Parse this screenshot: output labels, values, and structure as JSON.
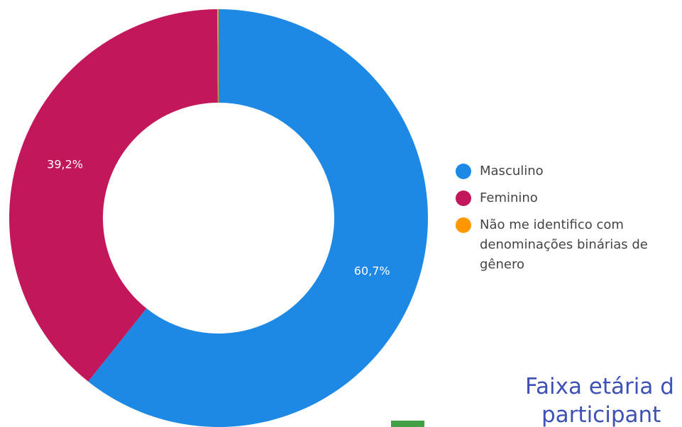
{
  "chart_data": {
    "type": "donut",
    "categories": [
      "Masculino",
      "Feminino",
      "Não me identifico com denominações binárias de gênero"
    ],
    "values": [
      60.7,
      39.2,
      0.1
    ],
    "value_labels": [
      "60,7%",
      "39,2%",
      null
    ],
    "colors": [
      "#1e88e5",
      "#c2185b",
      "#ff9800"
    ],
    "legend": "right"
  },
  "heading": {
    "lines": [
      "Faixa etária d",
      "participant"
    ]
  }
}
